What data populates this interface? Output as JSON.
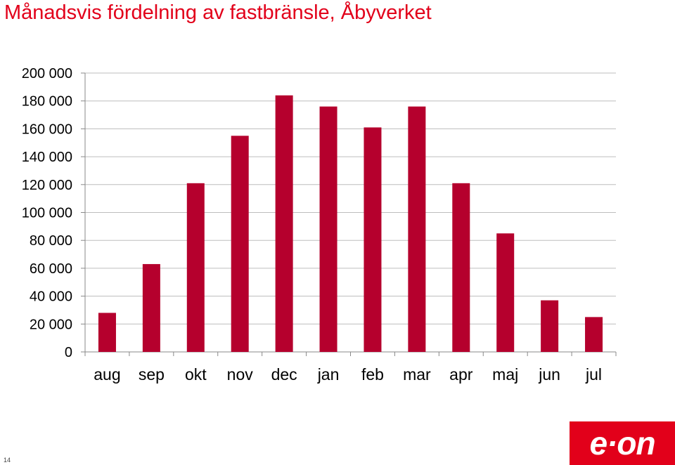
{
  "title": "Månadsvis fördelning av fastbränsle, Åbyverket",
  "page_number": "14",
  "logo_text": "e·on",
  "colors": {
    "bar": "#b5002d",
    "title": "#e2001a",
    "brand": "#e2001a"
  },
  "chart_data": {
    "type": "bar",
    "title": "Månadsvis fördelning av fastbränsle, Åbyverket",
    "xlabel": "",
    "ylabel": "",
    "categories": [
      "aug",
      "sep",
      "okt",
      "nov",
      "dec",
      "jan",
      "feb",
      "mar",
      "apr",
      "maj",
      "jun",
      "jul"
    ],
    "values": [
      28000,
      63000,
      121000,
      155000,
      184000,
      176000,
      161000,
      176000,
      121000,
      85000,
      37000,
      25000
    ],
    "ylim": [
      0,
      200000
    ],
    "yticks": [
      0,
      20000,
      40000,
      60000,
      80000,
      100000,
      120000,
      140000,
      160000,
      180000,
      200000
    ],
    "ytick_labels": [
      "0",
      "20 000",
      "40 000",
      "60 000",
      "80 000",
      "100 000",
      "120 000",
      "140 000",
      "160 000",
      "180 000",
      "200 000"
    ],
    "grid": true,
    "legend": "none"
  }
}
